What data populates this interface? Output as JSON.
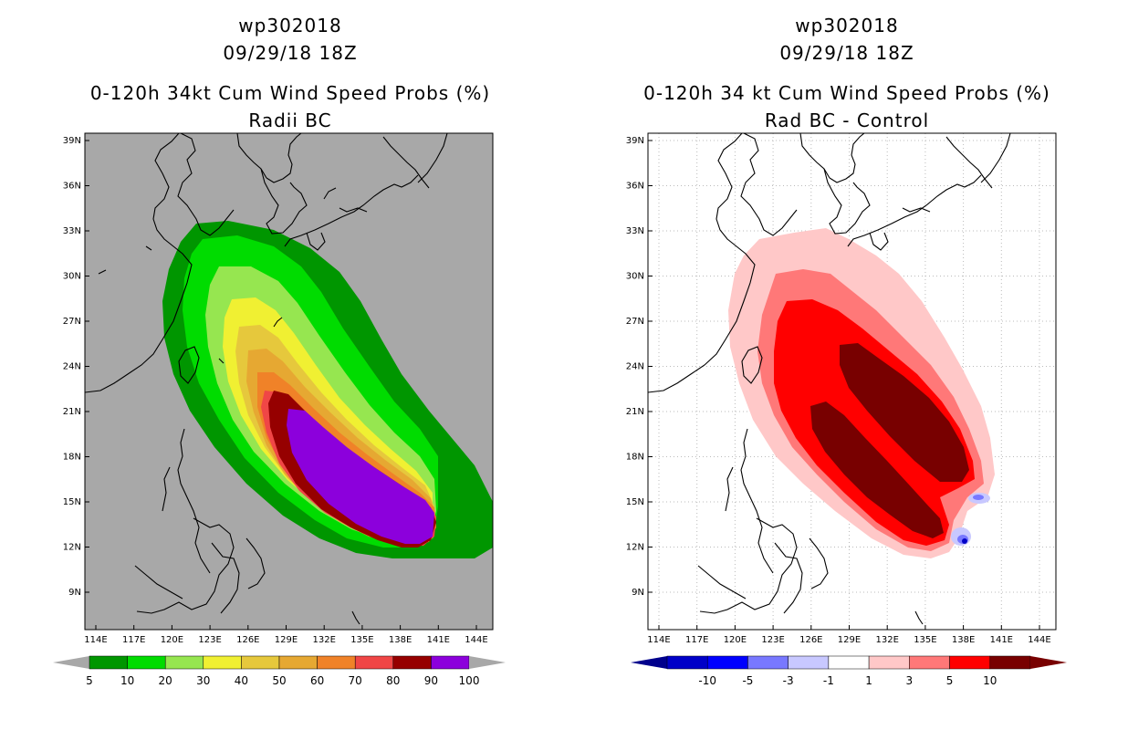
{
  "left": {
    "storm_id": "wp302018",
    "datetime": "09/29/18 18Z",
    "title": "0-120h 34kt Cum Wind Speed Probs (%)",
    "subtitle": "Radii BC",
    "background_color": "#a8a8a8",
    "colorbar": {
      "labels": [
        "5",
        "10",
        "20",
        "30",
        "40",
        "50",
        "60",
        "70",
        "80",
        "90",
        "100"
      ],
      "colors": [
        "#009600",
        "#00dc00",
        "#96e650",
        "#f0f032",
        "#e6c83c",
        "#e6a832",
        "#f08228",
        "#f04646",
        "#960000",
        "#8c00dc"
      ],
      "end_color": "#a8a8a8"
    }
  },
  "right": {
    "storm_id": "wp302018",
    "datetime": "09/29/18 18Z",
    "title": "0-120h 34 kt Cum Wind Speed Probs (%)",
    "subtitle": "Rad BC - Control",
    "background_color": "#ffffff",
    "colorbar": {
      "labels": [
        "-10",
        "-5",
        "-3",
        "-1",
        "1",
        "3",
        "5",
        "10"
      ],
      "colors": [
        "#0000c8",
        "#0000ff",
        "#7878ff",
        "#c8c8ff",
        "#ffffff",
        "#ffc8c8",
        "#ff7878",
        "#ff0000",
        "#780000"
      ],
      "start_color": "#00008c"
    }
  },
  "axes": {
    "lon_labels": [
      "114E",
      "117E",
      "120E",
      "123E",
      "126E",
      "129E",
      "132E",
      "135E",
      "138E",
      "141E",
      "144E"
    ],
    "lat_labels": [
      "39N",
      "36N",
      "33N",
      "30N",
      "27N",
      "24N",
      "21N",
      "18N",
      "15N",
      "12N",
      "9N"
    ]
  }
}
